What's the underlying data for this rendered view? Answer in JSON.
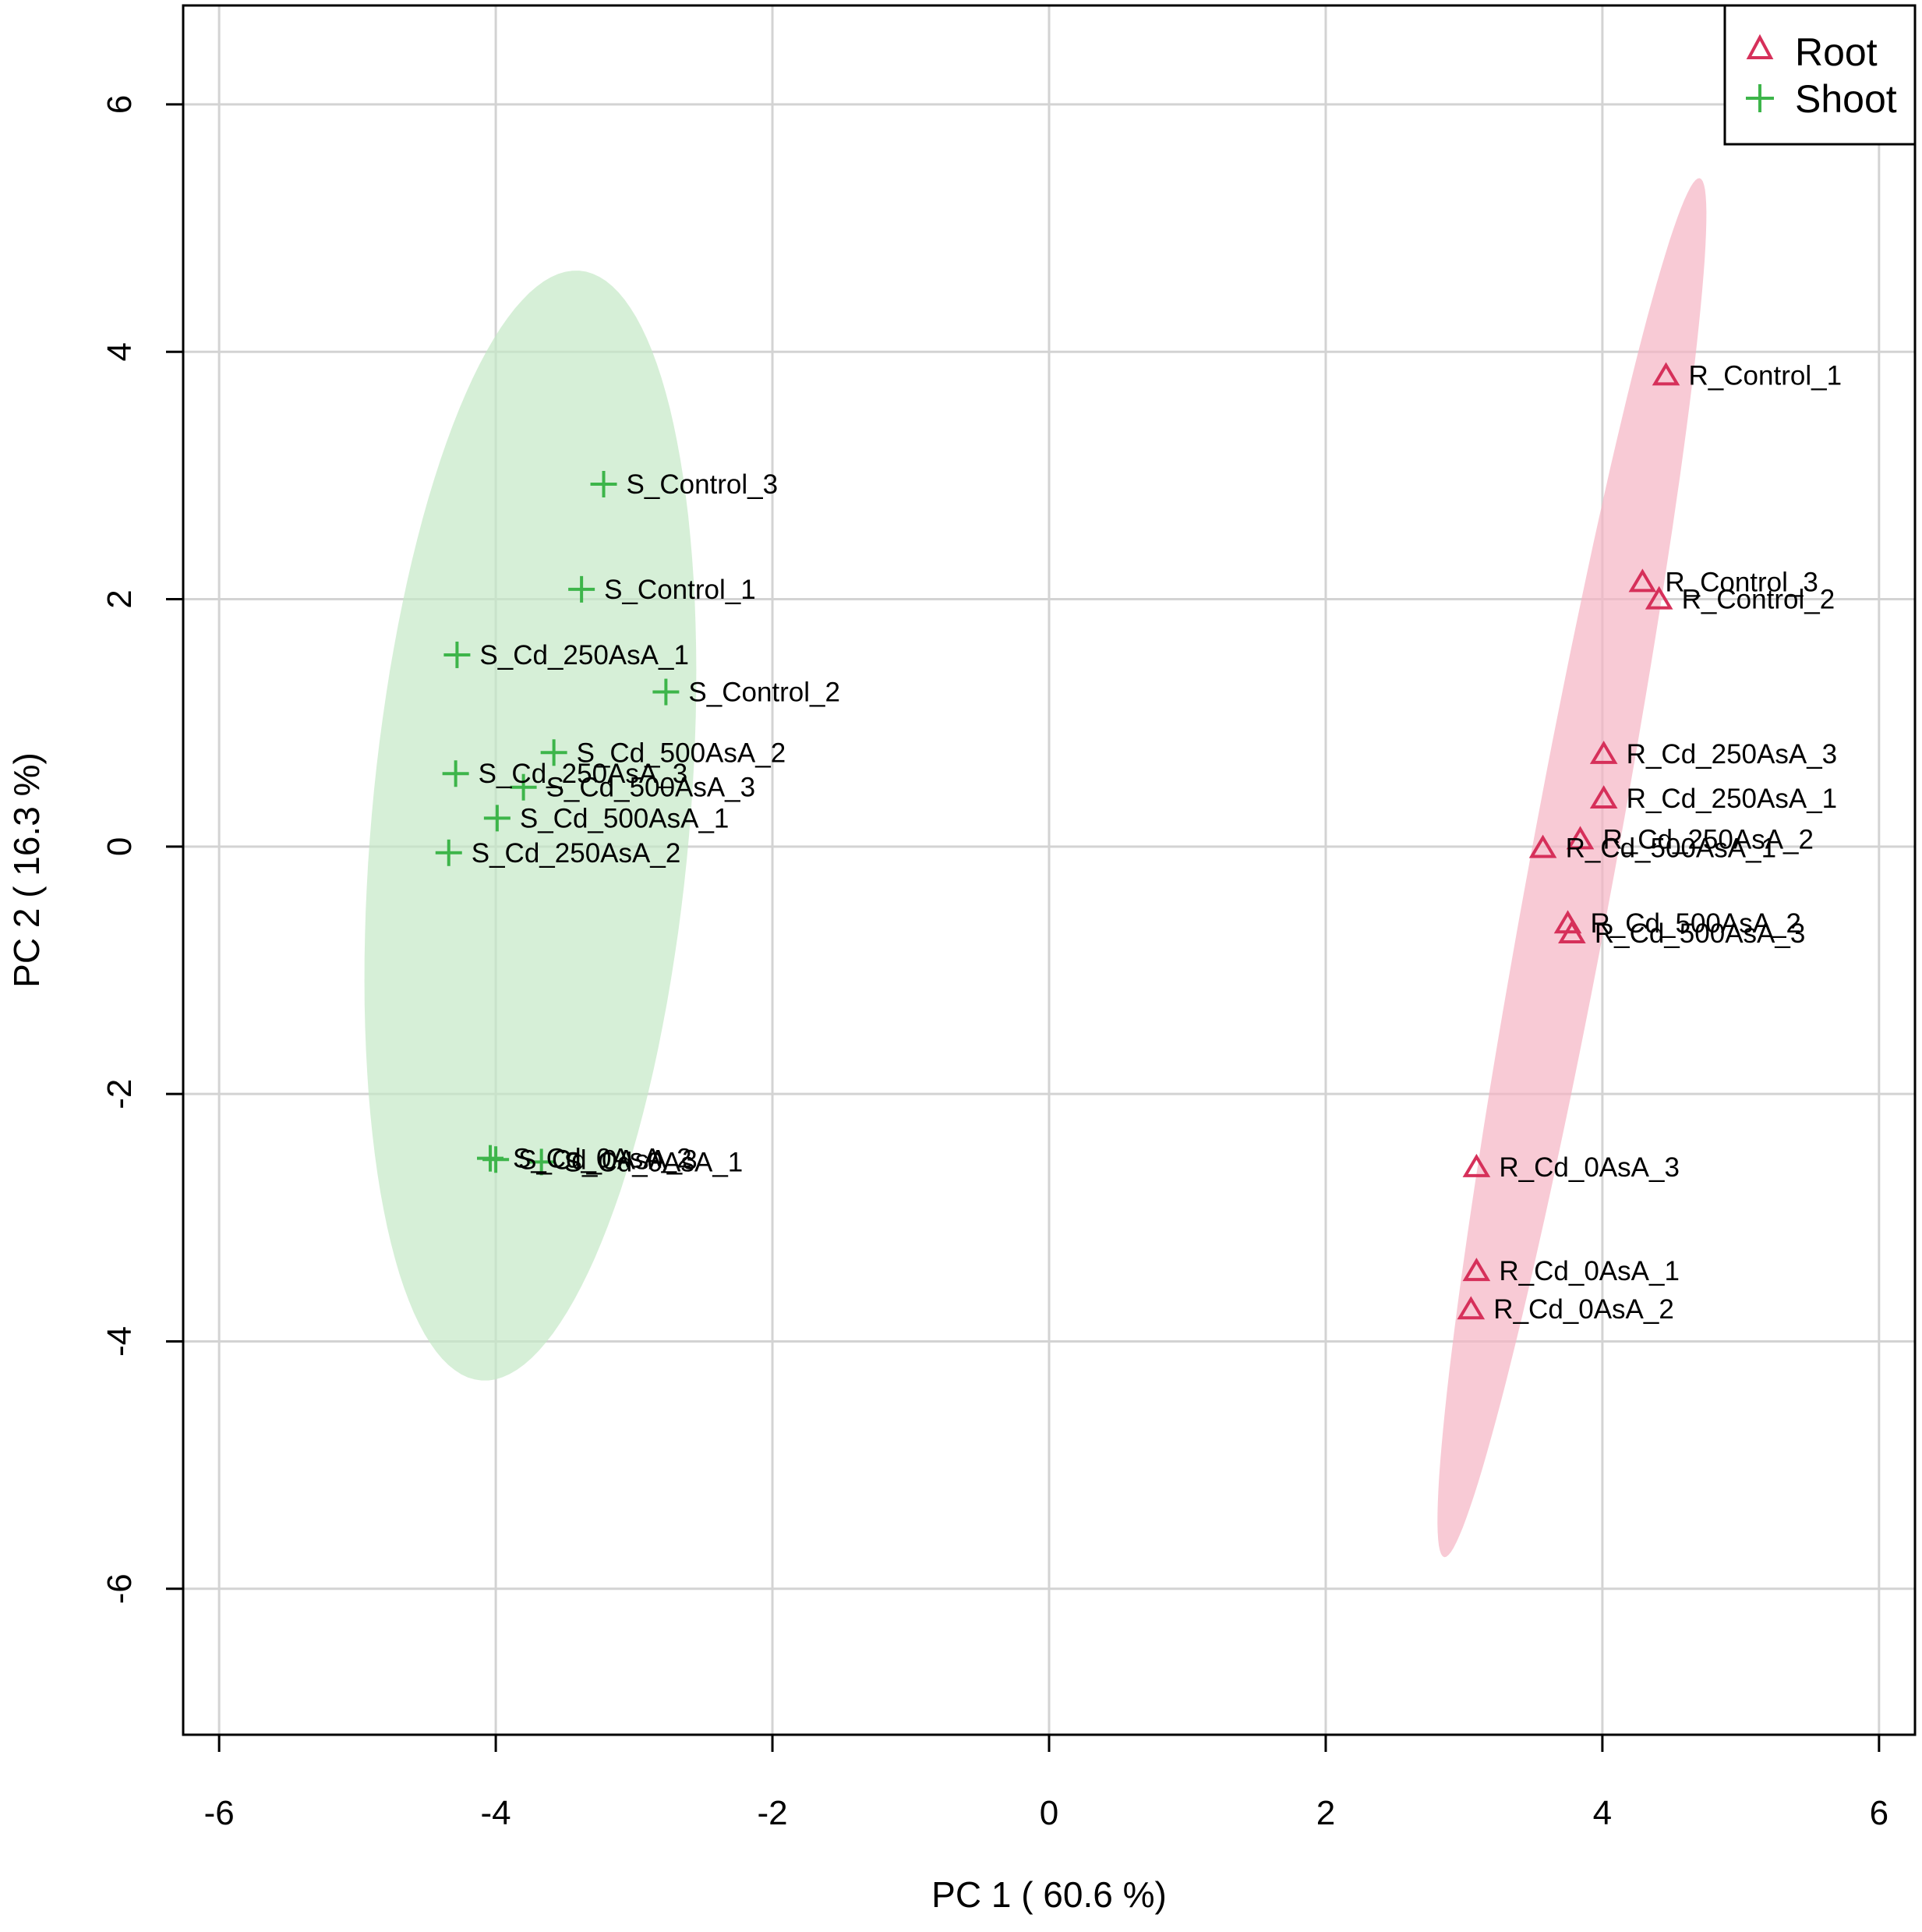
{
  "chart_data": {
    "type": "scatter",
    "title": "",
    "xlabel": "PC 1 ( 60.6 %)",
    "ylabel": "PC 2 ( 16.3 %)",
    "xlim": [
      -6.26,
      6.26
    ],
    "ylim": [
      -7.18,
      6.8
    ],
    "xticks": [
      -6,
      -4,
      -2,
      0,
      2,
      4,
      6
    ],
    "yticks": [
      -6,
      -4,
      -2,
      0,
      2,
      4,
      6
    ],
    "xtick_labels": [
      "-6",
      "-4",
      "-2",
      "0",
      "2",
      "4",
      "6"
    ],
    "ytick_labels": [
      "-6",
      "-4",
      "-2",
      "0",
      "2",
      "4",
      "6"
    ],
    "grid": true,
    "legend_position": "top-right",
    "series": [
      {
        "name": "Root",
        "marker": "triangle-open",
        "color": "#d6305a",
        "ellipse_color": "#f5b3c3",
        "ellipse": {
          "cx": 3.78,
          "cy": -0.17,
          "semi_major": 5.65,
          "semi_minor": 0.31,
          "angle_deg": 80.6
        },
        "points": [
          {
            "label": "R_Control_1",
            "x": 4.46,
            "y": 3.81
          },
          {
            "label": "R_Control_3",
            "x": 4.29,
            "y": 2.14
          },
          {
            "label": "R_Control_2",
            "x": 4.41,
            "y": 2.0
          },
          {
            "label": "R_Cd_250AsA_3",
            "x": 4.01,
            "y": 0.75
          },
          {
            "label": "R_Cd_250AsA_1",
            "x": 4.01,
            "y": 0.39
          },
          {
            "label": "R_Cd_250AsA_2",
            "x": 3.84,
            "y": 0.06
          },
          {
            "label": "R_Cd_500AsA_1",
            "x": 3.57,
            "y": -0.01
          },
          {
            "label": "R_Cd_500AsA_2",
            "x": 3.75,
            "y": -0.62
          },
          {
            "label": "R_Cd_500AsA_3",
            "x": 3.78,
            "y": -0.7
          },
          {
            "label": "R_Cd_0AsA_3",
            "x": 3.09,
            "y": -2.59
          },
          {
            "label": "R_Cd_0AsA_1",
            "x": 3.09,
            "y": -3.43
          },
          {
            "label": "R_Cd_0AsA_2",
            "x": 3.05,
            "y": -3.74
          }
        ]
      },
      {
        "name": "Shoot",
        "marker": "plus",
        "color": "#3db54a",
        "ellipse_color": "#c4e8c6",
        "ellipse": {
          "cx": -3.75,
          "cy": 0.17,
          "semi_major": 4.5,
          "semi_minor": 1.15,
          "angle_deg": 85.5
        },
        "points": [
          {
            "label": "S_Control_3",
            "x": -3.22,
            "y": 2.93
          },
          {
            "label": "S_Control_1",
            "x": -3.38,
            "y": 2.08
          },
          {
            "label": "S_Cd_250AsA_1",
            "x": -4.28,
            "y": 1.55
          },
          {
            "label": "S_Control_2",
            "x": -2.77,
            "y": 1.25
          },
          {
            "label": "S_Cd_500AsA_2",
            "x": -3.58,
            "y": 0.76
          },
          {
            "label": "S_Cd_250AsA_3",
            "x": -4.29,
            "y": 0.59
          },
          {
            "label": "S_Cd_500AsA_3",
            "x": -3.8,
            "y": 0.48
          },
          {
            "label": "S_Cd_500AsA_1",
            "x": -3.99,
            "y": 0.23
          },
          {
            "label": "S_Cd_250AsA_2",
            "x": -4.34,
            "y": -0.05
          },
          {
            "label": "S_Cd_0AsA_2",
            "x": -4.04,
            "y": -2.52
          },
          {
            "label": "S_Cd_0AsA_3",
            "x": -4.0,
            "y": -2.53
          },
          {
            "label": "S_Cd_0AsA_1",
            "x": -3.67,
            "y": -2.55
          }
        ]
      }
    ]
  }
}
